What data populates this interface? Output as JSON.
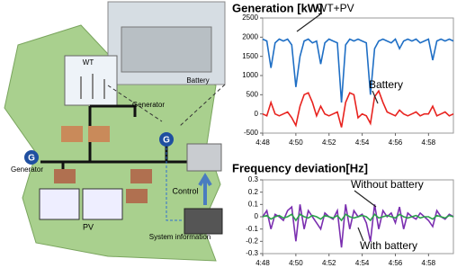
{
  "chart_data": [
    {
      "type": "line",
      "title": "Generation [kW]",
      "x": [
        48,
        48.25,
        48.5,
        48.75,
        49,
        49.25,
        49.5,
        49.75,
        50,
        50.25,
        50.5,
        50.75,
        51,
        51.25,
        51.5,
        51.75,
        52,
        52.25,
        52.5,
        52.75,
        53,
        53.25,
        53.5,
        53.75,
        54,
        54.25,
        54.5,
        54.75,
        55,
        55.25,
        55.5,
        55.75,
        56,
        56.25,
        56.5,
        56.75,
        57,
        57.25,
        57.5,
        57.75,
        58,
        58.25,
        58.5,
        58.75,
        59,
        59.25,
        59.5
      ],
      "series": [
        {
          "name": "WT+PV",
          "color": "#1f6fc5",
          "values": [
            1950,
            1900,
            1200,
            1850,
            1950,
            1900,
            1950,
            1800,
            700,
            1500,
            1900,
            1950,
            1850,
            1900,
            1300,
            1850,
            1950,
            1900,
            1850,
            300,
            1800,
            1950,
            1900,
            1950,
            1900,
            1850,
            500,
            1700,
            1900,
            1950,
            1900,
            1850,
            1950,
            1700,
            1900,
            1950,
            1900,
            1950,
            1850,
            1900,
            1950,
            1400,
            1900,
            1950,
            1900,
            1950,
            1900
          ]
        },
        {
          "name": "Battery",
          "color": "#e8231f",
          "values": [
            0,
            -50,
            300,
            0,
            -50,
            0,
            50,
            -100,
            -300,
            200,
            500,
            550,
            300,
            -50,
            200,
            0,
            -50,
            0,
            50,
            -350,
            300,
            550,
            500,
            -100,
            0,
            -50,
            -250,
            450,
            600,
            300,
            50,
            0,
            -50,
            100,
            0,
            -50,
            0,
            50,
            -50,
            0,
            0,
            200,
            -50,
            0,
            50,
            -50,
            0
          ]
        }
      ],
      "xlim": [
        48,
        59.5
      ],
      "xticks": [
        {
          "value": 48,
          "label": "4:48"
        },
        {
          "value": 50,
          "label": "4:50"
        },
        {
          "value": 52,
          "label": "4:52"
        },
        {
          "value": 54,
          "label": "4:54"
        },
        {
          "value": 56,
          "label": "4:56"
        },
        {
          "value": 58,
          "label": "4:58"
        }
      ],
      "ylim": [
        -500,
        2500
      ],
      "yticks": [
        -500,
        0,
        500,
        1000,
        1500,
        2000,
        2500
      ]
    },
    {
      "type": "line",
      "title": "Frequency deviation[Hz]",
      "x": [
        48,
        48.25,
        48.5,
        48.75,
        49,
        49.25,
        49.5,
        49.75,
        50,
        50.25,
        50.5,
        50.75,
        51,
        51.25,
        51.5,
        51.75,
        52,
        52.25,
        52.5,
        52.75,
        53,
        53.25,
        53.5,
        53.75,
        54,
        54.25,
        54.5,
        54.75,
        55,
        55.25,
        55.5,
        55.75,
        56,
        56.25,
        56.5,
        56.75,
        57,
        57.25,
        57.5,
        57.75,
        58,
        58.25,
        58.5,
        58.75,
        59,
        59.25,
        59.5
      ],
      "series": [
        {
          "name": "Without battery",
          "color": "#7b2fb0",
          "values": [
            0,
            0.05,
            -0.1,
            0.02,
            0,
            -0.03,
            0.05,
            0.08,
            -0.2,
            0.1,
            -0.1,
            0.05,
            0,
            -0.05,
            -0.1,
            0.03,
            0,
            -0.02,
            0.05,
            -0.25,
            0.1,
            -0.1,
            0.05,
            0,
            0.02,
            -0.05,
            -0.2,
            0.1,
            -0.1,
            0.05,
            0,
            0.03,
            -0.05,
            0.08,
            -0.1,
            0.03,
            0,
            -0.02,
            0.03,
            0,
            -0.03,
            -0.08,
            0.05,
            0,
            -0.02,
            0.02,
            0
          ]
        },
        {
          "name": "With battery",
          "color": "#2aa24a",
          "values": [
            0,
            0.01,
            -0.02,
            0,
            0.01,
            -0.01,
            0,
            0.02,
            -0.03,
            0.02,
            0,
            -0.01,
            0.01,
            0,
            -0.02,
            0.01,
            0,
            -0.01,
            0.01,
            -0.03,
            0.02,
            0,
            -0.01,
            0,
            0.01,
            0,
            -0.03,
            0.02,
            -0.01,
            0,
            0.01,
            0,
            -0.01,
            0.02,
            0,
            -0.01,
            0,
            0.01,
            -0.01,
            0,
            0,
            -0.02,
            0.01,
            0,
            -0.01,
            0.01,
            0
          ]
        }
      ],
      "xlim": [
        48,
        59.5
      ],
      "xticks": [
        {
          "value": 48,
          "label": "4:48"
        },
        {
          "value": 50,
          "label": "4:50"
        },
        {
          "value": 52,
          "label": "4:52"
        },
        {
          "value": 54,
          "label": "4:54"
        },
        {
          "value": 56,
          "label": "4:56"
        },
        {
          "value": 58,
          "label": "4:58"
        }
      ],
      "ylim": [
        -0.3,
        0.3
      ],
      "yticks": [
        -0.3,
        -0.2,
        -0.1,
        0,
        0.1,
        0.2,
        0.3
      ]
    }
  ],
  "diagram": {
    "wt": "WT",
    "battery": "Battery",
    "generator_top": "Generator",
    "generator_left": "Generator",
    "g_left": "G",
    "g_right": "G",
    "pv": "PV",
    "control": "Control",
    "system_information": "System information"
  }
}
